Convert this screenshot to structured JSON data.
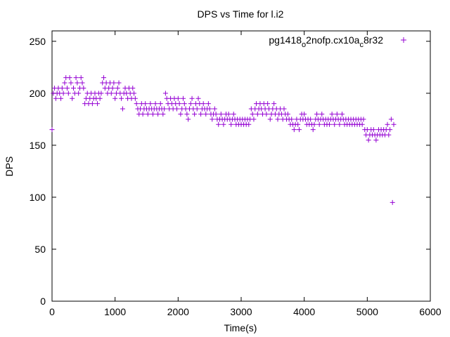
{
  "chart_data": {
    "type": "scatter",
    "title": "DPS vs Time for l.i2",
    "xlabel": "Time(s)",
    "ylabel": "DPS",
    "xlim": [
      0,
      6000
    ],
    "ylim": [
      0,
      260
    ],
    "xticks": [
      0,
      1000,
      2000,
      3000,
      4000,
      5000,
      6000
    ],
    "yticks": [
      0,
      50,
      100,
      150,
      200,
      250
    ],
    "grid": false,
    "legend_position": "top-right",
    "series": [
      {
        "name": "pg1418_o2nofp.cx10a_c8r32",
        "color": "#9400d3",
        "marker": "plus",
        "points": [
          [
            0,
            165
          ],
          [
            20,
            200
          ],
          [
            40,
            205
          ],
          [
            60,
            195
          ],
          [
            80,
            200
          ],
          [
            100,
            205
          ],
          [
            120,
            200
          ],
          [
            140,
            195
          ],
          [
            160,
            205
          ],
          [
            180,
            200
          ],
          [
            200,
            210
          ],
          [
            220,
            215
          ],
          [
            240,
            205
          ],
          [
            260,
            200
          ],
          [
            280,
            215
          ],
          [
            300,
            210
          ],
          [
            320,
            195
          ],
          [
            340,
            205
          ],
          [
            360,
            200
          ],
          [
            380,
            215
          ],
          [
            400,
            210
          ],
          [
            420,
            200
          ],
          [
            440,
            205
          ],
          [
            460,
            215
          ],
          [
            480,
            210
          ],
          [
            500,
            205
          ],
          [
            520,
            190
          ],
          [
            540,
            195
          ],
          [
            560,
            200
          ],
          [
            580,
            190
          ],
          [
            600,
            195
          ],
          [
            620,
            200
          ],
          [
            640,
            190
          ],
          [
            660,
            195
          ],
          [
            680,
            200
          ],
          [
            700,
            195
          ],
          [
            720,
            190
          ],
          [
            740,
            200
          ],
          [
            760,
            195
          ],
          [
            780,
            200
          ],
          [
            800,
            210
          ],
          [
            820,
            215
          ],
          [
            840,
            205
          ],
          [
            860,
            210
          ],
          [
            880,
            200
          ],
          [
            900,
            205
          ],
          [
            920,
            210
          ],
          [
            940,
            200
          ],
          [
            960,
            205
          ],
          [
            980,
            210
          ],
          [
            1000,
            195
          ],
          [
            1020,
            200
          ],
          [
            1040,
            205
          ],
          [
            1060,
            210
          ],
          [
            1080,
            200
          ],
          [
            1100,
            195
          ],
          [
            1120,
            185
          ],
          [
            1140,
            200
          ],
          [
            1160,
            205
          ],
          [
            1180,
            200
          ],
          [
            1200,
            195
          ],
          [
            1220,
            205
          ],
          [
            1240,
            200
          ],
          [
            1260,
            195
          ],
          [
            1280,
            205
          ],
          [
            1300,
            200
          ],
          [
            1320,
            195
          ],
          [
            1340,
            190
          ],
          [
            1360,
            185
          ],
          [
            1380,
            180
          ],
          [
            1400,
            185
          ],
          [
            1420,
            190
          ],
          [
            1440,
            180
          ],
          [
            1460,
            185
          ],
          [
            1480,
            190
          ],
          [
            1500,
            185
          ],
          [
            1520,
            180
          ],
          [
            1540,
            185
          ],
          [
            1560,
            190
          ],
          [
            1580,
            185
          ],
          [
            1600,
            180
          ],
          [
            1620,
            185
          ],
          [
            1640,
            190
          ],
          [
            1660,
            185
          ],
          [
            1680,
            180
          ],
          [
            1700,
            185
          ],
          [
            1720,
            190
          ],
          [
            1740,
            185
          ],
          [
            1760,
            180
          ],
          [
            1780,
            185
          ],
          [
            1800,
            200
          ],
          [
            1820,
            195
          ],
          [
            1840,
            190
          ],
          [
            1860,
            185
          ],
          [
            1880,
            195
          ],
          [
            1900,
            190
          ],
          [
            1920,
            185
          ],
          [
            1940,
            195
          ],
          [
            1960,
            190
          ],
          [
            1980,
            185
          ],
          [
            2000,
            195
          ],
          [
            2020,
            190
          ],
          [
            2040,
            180
          ],
          [
            2060,
            185
          ],
          [
            2080,
            195
          ],
          [
            2100,
            190
          ],
          [
            2120,
            185
          ],
          [
            2140,
            180
          ],
          [
            2160,
            175
          ],
          [
            2180,
            185
          ],
          [
            2200,
            190
          ],
          [
            2220,
            195
          ],
          [
            2240,
            185
          ],
          [
            2260,
            180
          ],
          [
            2280,
            190
          ],
          [
            2300,
            185
          ],
          [
            2320,
            195
          ],
          [
            2340,
            190
          ],
          [
            2360,
            180
          ],
          [
            2380,
            185
          ],
          [
            2400,
            190
          ],
          [
            2420,
            185
          ],
          [
            2440,
            180
          ],
          [
            2460,
            185
          ],
          [
            2480,
            190
          ],
          [
            2500,
            185
          ],
          [
            2520,
            180
          ],
          [
            2540,
            175
          ],
          [
            2560,
            180
          ],
          [
            2580,
            185
          ],
          [
            2600,
            180
          ],
          [
            2620,
            175
          ],
          [
            2640,
            170
          ],
          [
            2660,
            175
          ],
          [
            2680,
            180
          ],
          [
            2700,
            175
          ],
          [
            2720,
            170
          ],
          [
            2740,
            175
          ],
          [
            2760,
            180
          ],
          [
            2780,
            175
          ],
          [
            2800,
            180
          ],
          [
            2820,
            175
          ],
          [
            2840,
            170
          ],
          [
            2860,
            175
          ],
          [
            2880,
            180
          ],
          [
            2900,
            175
          ],
          [
            2920,
            170
          ],
          [
            2940,
            175
          ],
          [
            2960,
            170
          ],
          [
            2980,
            175
          ],
          [
            3000,
            170
          ],
          [
            3020,
            175
          ],
          [
            3040,
            170
          ],
          [
            3060,
            175
          ],
          [
            3080,
            170
          ],
          [
            3100,
            175
          ],
          [
            3120,
            170
          ],
          [
            3140,
            175
          ],
          [
            3160,
            185
          ],
          [
            3180,
            180
          ],
          [
            3200,
            175
          ],
          [
            3220,
            185
          ],
          [
            3240,
            190
          ],
          [
            3260,
            180
          ],
          [
            3280,
            185
          ],
          [
            3300,
            190
          ],
          [
            3320,
            185
          ],
          [
            3340,
            180
          ],
          [
            3360,
            190
          ],
          [
            3380,
            185
          ],
          [
            3400,
            180
          ],
          [
            3420,
            190
          ],
          [
            3440,
            185
          ],
          [
            3460,
            175
          ],
          [
            3480,
            180
          ],
          [
            3500,
            185
          ],
          [
            3520,
            190
          ],
          [
            3540,
            180
          ],
          [
            3560,
            185
          ],
          [
            3580,
            175
          ],
          [
            3600,
            180
          ],
          [
            3620,
            185
          ],
          [
            3640,
            180
          ],
          [
            3660,
            175
          ],
          [
            3680,
            185
          ],
          [
            3700,
            180
          ],
          [
            3720,
            175
          ],
          [
            3740,
            180
          ],
          [
            3760,
            175
          ],
          [
            3780,
            170
          ],
          [
            3800,
            175
          ],
          [
            3820,
            170
          ],
          [
            3840,
            165
          ],
          [
            3860,
            170
          ],
          [
            3880,
            175
          ],
          [
            3900,
            170
          ],
          [
            3920,
            165
          ],
          [
            3940,
            175
          ],
          [
            3960,
            180
          ],
          [
            3980,
            175
          ],
          [
            4000,
            180
          ],
          [
            4020,
            175
          ],
          [
            4040,
            170
          ],
          [
            4060,
            175
          ],
          [
            4080,
            170
          ],
          [
            4100,
            175
          ],
          [
            4120,
            170
          ],
          [
            4140,
            165
          ],
          [
            4160,
            170
          ],
          [
            4180,
            175
          ],
          [
            4200,
            180
          ],
          [
            4220,
            175
          ],
          [
            4240,
            170
          ],
          [
            4260,
            175
          ],
          [
            4280,
            180
          ],
          [
            4300,
            175
          ],
          [
            4320,
            170
          ],
          [
            4340,
            175
          ],
          [
            4360,
            170
          ],
          [
            4380,
            175
          ],
          [
            4400,
            170
          ],
          [
            4420,
            175
          ],
          [
            4440,
            180
          ],
          [
            4460,
            175
          ],
          [
            4480,
            170
          ],
          [
            4500,
            175
          ],
          [
            4520,
            180
          ],
          [
            4540,
            175
          ],
          [
            4560,
            170
          ],
          [
            4580,
            175
          ],
          [
            4600,
            180
          ],
          [
            4620,
            175
          ],
          [
            4640,
            170
          ],
          [
            4660,
            175
          ],
          [
            4680,
            170
          ],
          [
            4700,
            175
          ],
          [
            4720,
            170
          ],
          [
            4740,
            175
          ],
          [
            4760,
            170
          ],
          [
            4780,
            175
          ],
          [
            4800,
            170
          ],
          [
            4820,
            175
          ],
          [
            4840,
            170
          ],
          [
            4860,
            175
          ],
          [
            4880,
            170
          ],
          [
            4900,
            175
          ],
          [
            4920,
            170
          ],
          [
            4940,
            175
          ],
          [
            4960,
            165
          ],
          [
            4980,
            160
          ],
          [
            5000,
            165
          ],
          [
            5020,
            155
          ],
          [
            5040,
            160
          ],
          [
            5060,
            165
          ],
          [
            5080,
            160
          ],
          [
            5100,
            165
          ],
          [
            5120,
            160
          ],
          [
            5140,
            155
          ],
          [
            5160,
            160
          ],
          [
            5180,
            165
          ],
          [
            5200,
            160
          ],
          [
            5220,
            165
          ],
          [
            5240,
            160
          ],
          [
            5260,
            165
          ],
          [
            5280,
            160
          ],
          [
            5300,
            165
          ],
          [
            5320,
            170
          ],
          [
            5340,
            160
          ],
          [
            5360,
            165
          ],
          [
            5380,
            175
          ],
          [
            5400,
            95
          ],
          [
            5420,
            170
          ]
        ]
      }
    ]
  }
}
